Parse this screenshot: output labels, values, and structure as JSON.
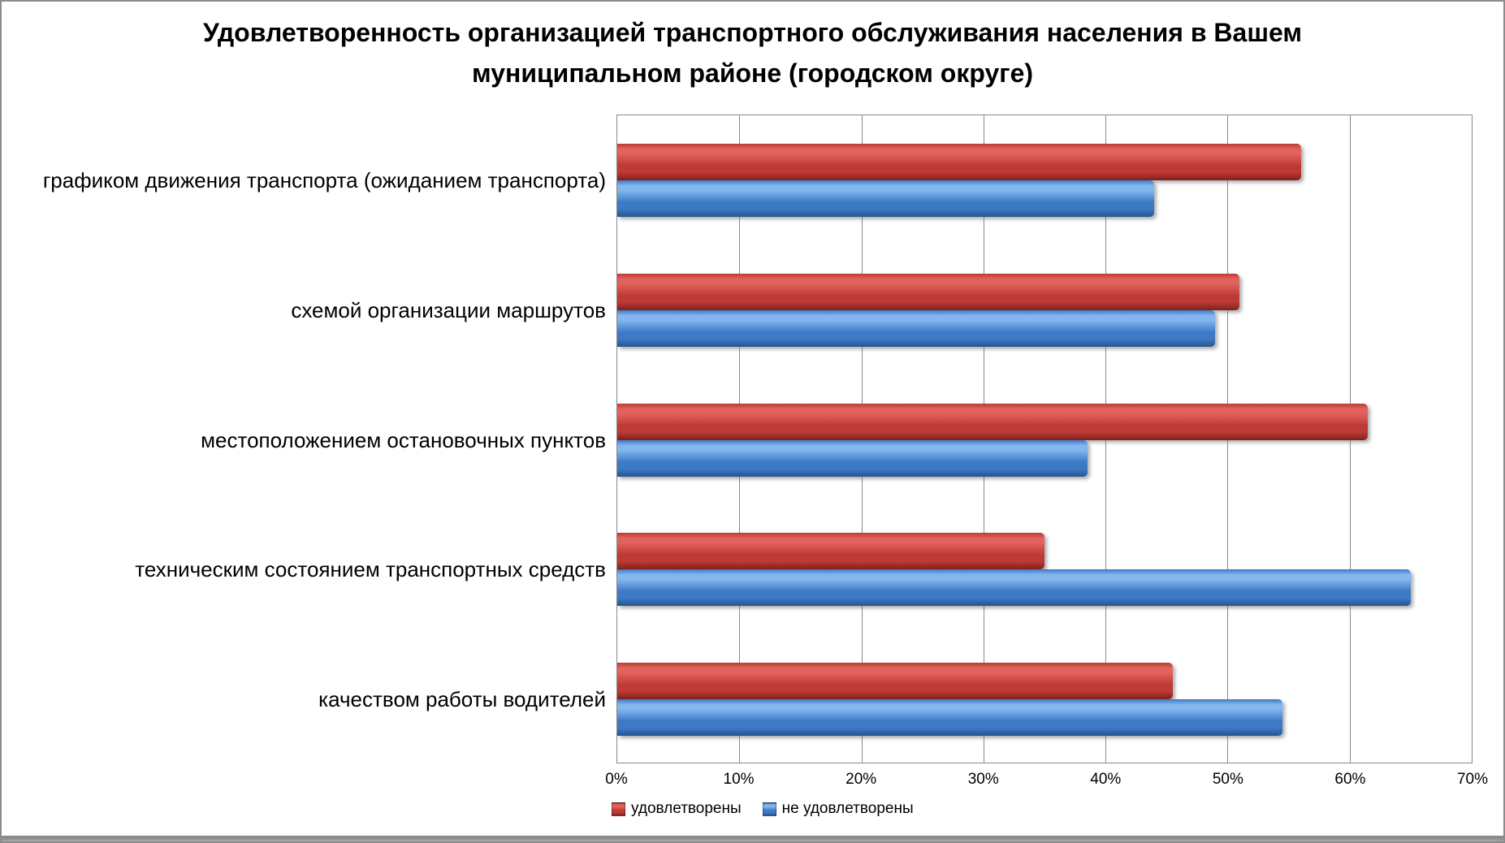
{
  "chart_data": {
    "type": "bar",
    "orientation": "horizontal",
    "title": "Удовлетворенность организацией транспортного обслуживания населения в Вашем муниципальном районе (городском округе)",
    "categories": [
      "графиком движения транспорта (ожиданием транспорта)",
      "схемой организации маршрутов",
      "местоположением остановочных пунктов",
      "техническим состоянием транспортных средств",
      "качеством работы водителей"
    ],
    "series": [
      {
        "name": "удовлетворены",
        "color": {
          "main": "#be3a35",
          "light": "#e2635d",
          "dark": "#7c211e"
        },
        "values": [
          56,
          51,
          61.5,
          35,
          45.5
        ]
      },
      {
        "name": "не удовлетворены",
        "color": {
          "main": "#3d7ac6",
          "light": "#83b7ee",
          "dark": "#27538f"
        },
        "values": [
          44,
          49,
          38.5,
          65,
          54.5
        ]
      }
    ],
    "x_ticks": [
      "0%",
      "10%",
      "20%",
      "30%",
      "40%",
      "50%",
      "60%",
      "70%"
    ],
    "xlim": [
      0,
      70
    ],
    "unit": "%",
    "grid": "vertical",
    "legend_position": "bottom",
    "frame_color": "#8c8c8c",
    "gridline_color": "#8a8a8a"
  }
}
